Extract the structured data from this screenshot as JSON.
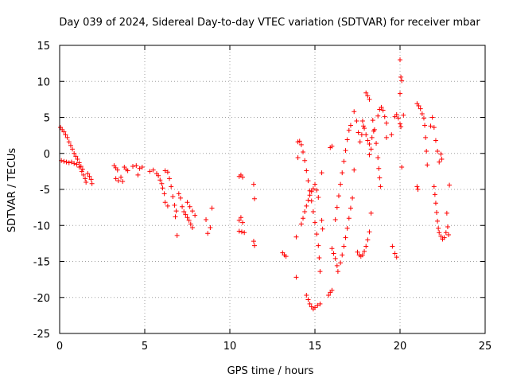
{
  "chart_data": {
    "type": "scatter",
    "title": "Day 039 of 2024, Sidereal Day-to-day VTEC variation (SDTVAR) for receiver mbar",
    "xlabel": "GPS time / hours",
    "ylabel": "SDTVAR / TECUs",
    "xlim": [
      0,
      25
    ],
    "ylim": [
      -25,
      15
    ],
    "xticks": [
      "0",
      "5",
      "10",
      "15",
      "20",
      "25"
    ],
    "yticks": [
      "15",
      "10",
      "5",
      "0",
      "-5",
      "-10",
      "-15",
      "-20",
      "-25"
    ],
    "grid": true,
    "marker": "plus",
    "color": "#ff0000",
    "series": [
      {
        "name": "SDTVAR",
        "points": [
          [
            0.05,
            3.6
          ],
          [
            0.15,
            3.3
          ],
          [
            0.25,
            3.0
          ],
          [
            0.35,
            2.6
          ],
          [
            0.45,
            2.2
          ],
          [
            0.55,
            1.6
          ],
          [
            0.65,
            1.1
          ],
          [
            0.75,
            0.6
          ],
          [
            0.85,
            0.0
          ],
          [
            0.95,
            -0.4
          ],
          [
            1.05,
            -0.8
          ],
          [
            1.15,
            -1.3
          ],
          [
            1.25,
            -1.8
          ],
          [
            1.35,
            -2.2
          ],
          [
            0.1,
            -1.0
          ],
          [
            0.25,
            -1.1
          ],
          [
            0.4,
            -1.2
          ],
          [
            0.55,
            -1.3
          ],
          [
            0.7,
            -1.2
          ],
          [
            0.85,
            -1.4
          ],
          [
            1.0,
            -1.5
          ],
          [
            1.15,
            -1.9
          ],
          [
            1.3,
            -2.5
          ],
          [
            1.4,
            -3.0
          ],
          [
            1.5,
            -3.5
          ],
          [
            1.55,
            -4.0
          ],
          [
            1.65,
            -2.8
          ],
          [
            1.75,
            -3.2
          ],
          [
            1.85,
            -3.6
          ],
          [
            1.9,
            -4.2
          ],
          [
            3.2,
            -1.7
          ],
          [
            3.3,
            -2.0
          ],
          [
            3.4,
            -2.3
          ],
          [
            3.3,
            -3.5
          ],
          [
            3.45,
            -3.8
          ],
          [
            3.6,
            -3.3
          ],
          [
            3.7,
            -3.9
          ],
          [
            3.8,
            -1.9
          ],
          [
            3.9,
            -2.2
          ],
          [
            4.0,
            -2.4
          ],
          [
            4.3,
            -1.8
          ],
          [
            4.5,
            -1.7
          ],
          [
            4.7,
            -2.1
          ],
          [
            4.85,
            -1.9
          ],
          [
            4.6,
            -3.0
          ],
          [
            5.3,
            -2.5
          ],
          [
            5.5,
            -2.3
          ],
          [
            5.7,
            -2.8
          ],
          [
            5.8,
            -3.1
          ],
          [
            5.9,
            -3.7
          ],
          [
            6.0,
            -4.2
          ],
          [
            6.05,
            -4.8
          ],
          [
            6.15,
            -5.6
          ],
          [
            6.2,
            -6.8
          ],
          [
            6.35,
            -7.3
          ],
          [
            6.2,
            -2.4
          ],
          [
            6.35,
            -2.6
          ],
          [
            6.45,
            -3.5
          ],
          [
            6.55,
            -4.6
          ],
          [
            6.65,
            -6.0
          ],
          [
            6.75,
            -7.2
          ],
          [
            6.85,
            -8.0
          ],
          [
            6.8,
            -8.8
          ],
          [
            6.9,
            -11.4
          ],
          [
            7.0,
            -5.6
          ],
          [
            7.1,
            -6.2
          ],
          [
            7.2,
            -7.4
          ],
          [
            7.3,
            -8.1
          ],
          [
            7.4,
            -8.5
          ],
          [
            7.5,
            -8.9
          ],
          [
            7.6,
            -9.3
          ],
          [
            7.7,
            -9.8
          ],
          [
            7.8,
            -10.3
          ],
          [
            7.5,
            -6.8
          ],
          [
            7.65,
            -7.4
          ],
          [
            7.8,
            -8.0
          ],
          [
            7.95,
            -8.6
          ],
          [
            8.6,
            -9.2
          ],
          [
            8.7,
            -11.1
          ],
          [
            8.85,
            -10.3
          ],
          [
            8.95,
            -7.6
          ],
          [
            10.55,
            -3.2
          ],
          [
            10.65,
            -3.0
          ],
          [
            10.75,
            -3.3
          ],
          [
            10.55,
            -9.3
          ],
          [
            10.65,
            -8.9
          ],
          [
            10.75,
            -9.6
          ],
          [
            10.55,
            -10.8
          ],
          [
            10.7,
            -10.9
          ],
          [
            10.85,
            -11.0
          ],
          [
            11.4,
            -4.3
          ],
          [
            11.45,
            -6.3
          ],
          [
            11.4,
            -12.2
          ],
          [
            11.45,
            -12.8
          ],
          [
            13.1,
            -13.8
          ],
          [
            13.2,
            -14.1
          ],
          [
            13.3,
            -14.3
          ],
          [
            13.9,
            -11.6
          ],
          [
            13.9,
            -17.2
          ],
          [
            14.0,
            1.6
          ],
          [
            14.0,
            -0.6
          ],
          [
            14.1,
            1.7
          ],
          [
            14.2,
            1.2
          ],
          [
            14.3,
            0.2
          ],
          [
            14.4,
            -1.0
          ],
          [
            14.5,
            -2.4
          ],
          [
            14.6,
            -3.8
          ],
          [
            14.7,
            -5.2
          ],
          [
            14.8,
            -6.6
          ],
          [
            14.9,
            -8.1
          ],
          [
            15.0,
            -9.6
          ],
          [
            15.1,
            -11.2
          ],
          [
            15.2,
            -12.8
          ],
          [
            15.25,
            -14.5
          ],
          [
            15.3,
            -16.4
          ],
          [
            14.2,
            -9.8
          ],
          [
            14.3,
            -9.0
          ],
          [
            14.4,
            -8.1
          ],
          [
            14.5,
            -7.3
          ],
          [
            14.6,
            -6.5
          ],
          [
            14.7,
            -5.8
          ],
          [
            14.8,
            -5.3
          ],
          [
            14.9,
            -4.9
          ],
          [
            15.0,
            -4.3
          ],
          [
            15.1,
            -5.1
          ],
          [
            15.2,
            -6.1
          ],
          [
            14.5,
            -19.7
          ],
          [
            14.6,
            -20.3
          ],
          [
            14.7,
            -20.9
          ],
          [
            14.8,
            -21.3
          ],
          [
            14.9,
            -21.6
          ],
          [
            15.0,
            -21.4
          ],
          [
            15.15,
            -21.1
          ],
          [
            15.3,
            -20.9
          ],
          [
            15.4,
            -2.7
          ],
          [
            15.4,
            -9.3
          ],
          [
            15.45,
            -10.5
          ],
          [
            15.8,
            -19.7
          ],
          [
            15.9,
            -19.3
          ],
          [
            16.0,
            -19.0
          ],
          [
            15.9,
            0.8
          ],
          [
            16.0,
            1.0
          ],
          [
            16.0,
            -13.2
          ],
          [
            16.1,
            -13.9
          ],
          [
            16.2,
            -14.6
          ],
          [
            16.3,
            -15.6
          ],
          [
            16.35,
            -16.4
          ],
          [
            16.5,
            -15.2
          ],
          [
            16.6,
            -14.1
          ],
          [
            16.7,
            -12.9
          ],
          [
            16.8,
            -11.7
          ],
          [
            16.9,
            -10.4
          ],
          [
            17.0,
            -9.0
          ],
          [
            17.1,
            -7.6
          ],
          [
            17.2,
            -6.2
          ],
          [
            16.2,
            -9.2
          ],
          [
            16.3,
            -7.5
          ],
          [
            16.4,
            -5.9
          ],
          [
            16.5,
            -4.3
          ],
          [
            16.6,
            -2.7
          ],
          [
            16.7,
            -1.1
          ],
          [
            16.8,
            0.4
          ],
          [
            16.9,
            1.9
          ],
          [
            17.0,
            3.2
          ],
          [
            17.1,
            3.9
          ],
          [
            17.3,
            -2.3
          ],
          [
            17.3,
            5.8
          ],
          [
            17.45,
            4.5
          ],
          [
            17.55,
            2.9
          ],
          [
            17.65,
            1.6
          ],
          [
            17.75,
            2.6
          ],
          [
            17.85,
            3.8
          ],
          [
            17.5,
            -13.7
          ],
          [
            17.6,
            -14.1
          ],
          [
            17.7,
            -14.3
          ],
          [
            17.8,
            -14.1
          ],
          [
            17.9,
            -13.6
          ],
          [
            18.0,
            -12.9
          ],
          [
            18.1,
            -12.0
          ],
          [
            18.2,
            -10.9
          ],
          [
            18.3,
            -8.3
          ],
          [
            17.8,
            4.5
          ],
          [
            17.9,
            3.5
          ],
          [
            18.0,
            2.6
          ],
          [
            18.1,
            1.8
          ],
          [
            18.2,
            1.3
          ],
          [
            18.3,
            0.6
          ],
          [
            18.2,
            -0.2
          ],
          [
            18.35,
            2.2
          ],
          [
            18.45,
            3.1
          ],
          [
            18.0,
            8.4
          ],
          [
            18.1,
            8.0
          ],
          [
            18.2,
            7.5
          ],
          [
            18.4,
            4.6
          ],
          [
            18.5,
            3.3
          ],
          [
            18.6,
            1.4
          ],
          [
            18.7,
            -0.6
          ],
          [
            18.75,
            -2.1
          ],
          [
            18.8,
            -3.4
          ],
          [
            18.85,
            -4.6
          ],
          [
            18.7,
            5.2
          ],
          [
            18.8,
            6.1
          ],
          [
            18.9,
            6.4
          ],
          [
            19.0,
            6.0
          ],
          [
            19.1,
            5.1
          ],
          [
            19.2,
            4.2
          ],
          [
            19.2,
            2.2
          ],
          [
            19.5,
            2.6
          ],
          [
            19.7,
            5.1
          ],
          [
            19.8,
            5.4
          ],
          [
            19.9,
            4.9
          ],
          [
            20.0,
            4.1
          ],
          [
            20.05,
            3.7
          ],
          [
            19.55,
            -12.9
          ],
          [
            19.7,
            -13.9
          ],
          [
            19.8,
            -14.4
          ],
          [
            20.0,
            13.0
          ],
          [
            20.05,
            10.6
          ],
          [
            20.1,
            10.1
          ],
          [
            20.0,
            8.3
          ],
          [
            20.1,
            -1.9
          ],
          [
            20.2,
            5.3
          ],
          [
            21.0,
            6.9
          ],
          [
            21.1,
            6.6
          ],
          [
            21.2,
            6.2
          ],
          [
            21.3,
            5.5
          ],
          [
            21.4,
            4.9
          ],
          [
            21.45,
            3.9
          ],
          [
            21.5,
            2.2
          ],
          [
            21.55,
            0.3
          ],
          [
            21.6,
            -1.6
          ],
          [
            21.0,
            -4.6
          ],
          [
            21.05,
            -5.0
          ],
          [
            21.8,
            3.8
          ],
          [
            21.9,
            5.0
          ],
          [
            22.0,
            3.6
          ],
          [
            22.1,
            1.8
          ],
          [
            22.2,
            0.3
          ],
          [
            22.3,
            -1.2
          ],
          [
            22.4,
            -0.1
          ],
          [
            22.45,
            -0.8
          ],
          [
            22.0,
            -4.6
          ],
          [
            22.05,
            -5.7
          ],
          [
            22.1,
            -6.9
          ],
          [
            22.15,
            -8.2
          ],
          [
            22.2,
            -9.4
          ],
          [
            22.25,
            -10.4
          ],
          [
            22.3,
            -11.0
          ],
          [
            22.4,
            -11.5
          ],
          [
            22.5,
            -11.9
          ],
          [
            22.6,
            -11.7
          ],
          [
            22.7,
            -11.0
          ],
          [
            22.8,
            -10.2
          ],
          [
            22.75,
            -8.3
          ],
          [
            22.85,
            -11.3
          ],
          [
            22.9,
            -4.4
          ]
        ]
      }
    ]
  }
}
